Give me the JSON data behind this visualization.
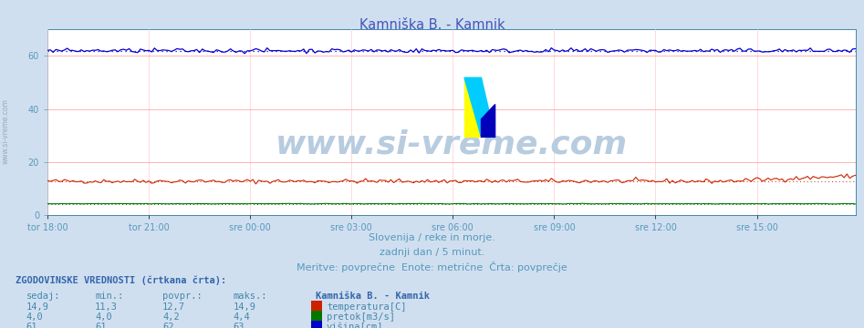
{
  "title": "Kamniška B. - Kamnik",
  "title_color": "#4455bb",
  "background_color": "#d0dff0",
  "plot_bg_color": "#ffffff",
  "grid_color_h": "#ffaaaa",
  "grid_color_v": "#ddaaaa",
  "xlabel_ticks": [
    "tor 18:00",
    "tor 21:00",
    "sre 00:00",
    "sre 03:00",
    "sre 06:00",
    "sre 09:00",
    "sre 12:00",
    "sre 15:00"
  ],
  "tick_positions": [
    0,
    36,
    72,
    108,
    144,
    180,
    216,
    252
  ],
  "total_points": 288,
  "ylim": [
    0,
    70
  ],
  "yticks": [
    0,
    20,
    40,
    60
  ],
  "temp_avg": 12.7,
  "temp_min": 11.3,
  "temp_max": 14.9,
  "temp_current": 14.9,
  "pretok_avg": 4.2,
  "pretok_min": 4.0,
  "pretok_max": 4.4,
  "pretok_current": 4.0,
  "visina_avg": 62,
  "visina_min": 61,
  "visina_max": 63,
  "visina_current": 61,
  "temp_color": "#cc2200",
  "pretok_color": "#007700",
  "visina_color": "#0000cc",
  "subtitle1": "Slovenija / reke in morje.",
  "subtitle2": "zadnji dan / 5 minut.",
  "subtitle3": "Meritve: povprečne  Enote: metrične  Črta: povprečje",
  "subtitle_color": "#5599bb",
  "watermark": "www.si-vreme.com",
  "watermark_color": "#b8cce0",
  "table_header": "ZGODOVINSKE VREDNOSTI (črtkana črta):",
  "table_col1": "sedaj:",
  "table_col2": "min.:",
  "table_col3": "povpr.:",
  "table_col4": "maks.:",
  "table_station": "Kamniška B. - Kamnik",
  "table_color": "#4488aa",
  "table_header_color": "#3366aa",
  "left_label": "www.si-vreme.com",
  "left_label_color": "#9aaabb",
  "axis_color": "#4488aa",
  "tick_color": "#5599bb"
}
